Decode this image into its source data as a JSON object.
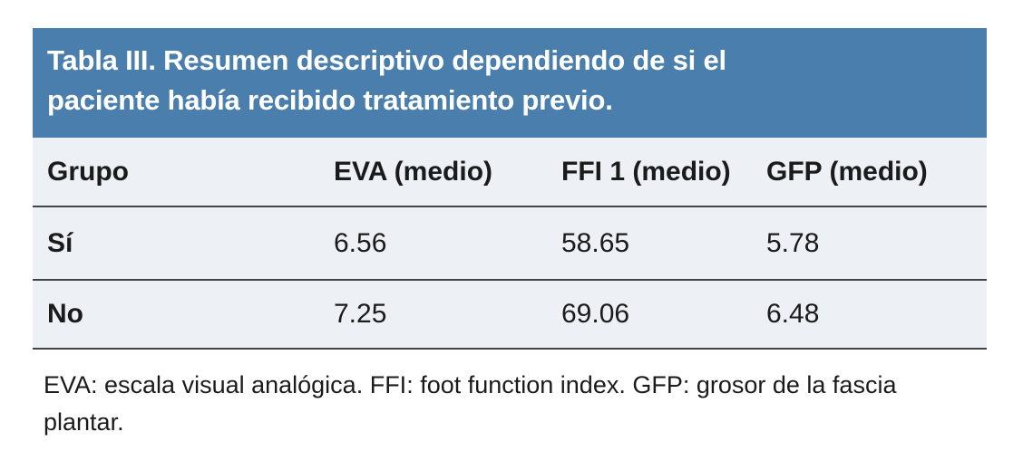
{
  "table": {
    "title": "Tabla III. Resumen descriptivo dependiendo de si el paciente había recibido tratamiento previo.",
    "columns": [
      "Grupo",
      "EVA (medio)",
      "FFI 1 (medio)",
      "GFP (medio)"
    ],
    "rows": [
      [
        "Sí",
        "6.56",
        "58.65",
        "5.78"
      ],
      [
        "No",
        "7.25",
        "69.06",
        "6.48"
      ]
    ],
    "footnote": "EVA: escala visual analógica. FFI: foot function index. GFP: grosor de la fascia plantar."
  },
  "chart_data": {
    "type": "table",
    "title": "Tabla III. Resumen descriptivo dependiendo de si el paciente había recibido tratamiento previo.",
    "columns": [
      "Grupo",
      "EVA (medio)",
      "FFI 1 (medio)",
      "GFP (medio)"
    ],
    "rows": [
      {
        "grupo": "Sí",
        "eva_medio": 6.56,
        "ffi1_medio": 58.65,
        "gfp_medio": 5.78
      },
      {
        "grupo": "No",
        "eva_medio": 7.25,
        "ffi1_medio": 69.06,
        "gfp_medio": 6.48
      }
    ]
  },
  "colors": {
    "header_bg": "#4A7EAD",
    "body_bg": "#EDF0F5",
    "rule": "#3F444B",
    "title_text": "#FFFFFF",
    "text": "#1B1B1B"
  }
}
